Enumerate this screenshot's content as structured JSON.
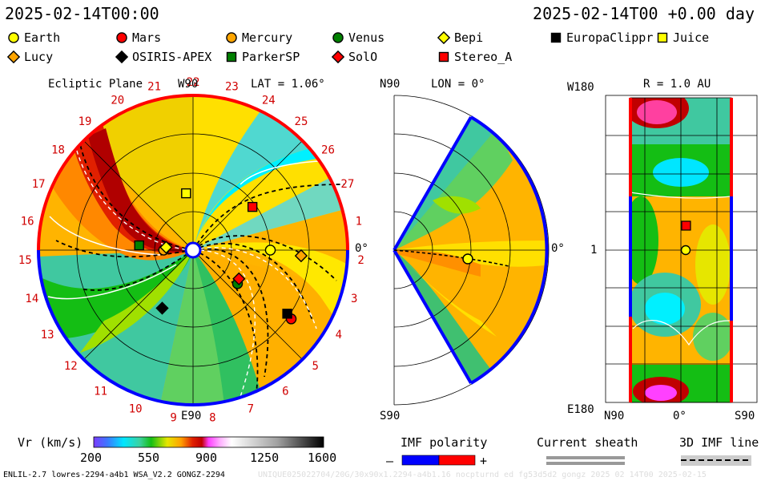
{
  "header": {
    "datetime": "2025-02-14T00:00",
    "offset_label": "2025-02-14T00 +0.00 day"
  },
  "legend": [
    {
      "name": "Earth",
      "shape": "circle",
      "color": "#ffff00"
    },
    {
      "name": "Mars",
      "shape": "circle",
      "color": "#ff0000"
    },
    {
      "name": "Mercury",
      "shape": "circle",
      "color": "#ffa500"
    },
    {
      "name": "Venus",
      "shape": "circle",
      "color": "#008000"
    },
    {
      "name": "Bepi",
      "shape": "diamond",
      "color": "#ffff00"
    },
    {
      "name": "EuropaClippr",
      "shape": "square",
      "color": "#000000"
    },
    {
      "name": "Juice",
      "shape": "square",
      "color": "#ffff00"
    },
    {
      "name": "Lucy",
      "shape": "diamond",
      "color": "#ffa500"
    },
    {
      "name": "OSIRIS-APEX",
      "shape": "diamond",
      "color": "#000000"
    },
    {
      "name": "ParkerSP",
      "shape": "square",
      "color": "#008000"
    },
    {
      "name": "SolO",
      "shape": "diamond",
      "color": "#ff0000"
    },
    {
      "name": "Stereo_A",
      "shape": "square",
      "color": "#ff0000"
    }
  ],
  "panels": {
    "ecliptic": {
      "title": "Ecliptic Plane",
      "top_label": "W90",
      "bottom_label": "E90",
      "lat_label": "LAT = 1.06°",
      "right_label": "0°"
    },
    "meridional": {
      "top_label": "N90",
      "bottom_label": "S90",
      "lon_label": "LON = 0°",
      "right_label": "0°"
    },
    "sphere": {
      "top_label": "W180",
      "bottom_label": "E180",
      "r_label": "R = 1.0 AU",
      "left_mid": "1",
      "bottom_left": "N90",
      "bottom_mid": "0°",
      "bottom_right": "S90"
    }
  },
  "carrington_numbers": [
    "19",
    "20",
    "21",
    "22",
    "23",
    "24",
    "25",
    "26",
    "27",
    "1",
    "2",
    "3",
    "4",
    "5",
    "6",
    "7",
    "8",
    "9",
    "10",
    "11",
    "12",
    "13",
    "14",
    "15",
    "16",
    "17",
    "18"
  ],
  "colorbar": {
    "label": "Vr (km/s)",
    "ticks": [
      "200",
      "550",
      "900",
      "1250",
      "1600"
    ],
    "min": 200,
    "max": 1600
  },
  "imf_polarity": {
    "label": "IMF polarity",
    "minus": "–",
    "plus": "+",
    "neg_color": "#0000ff",
    "pos_color": "#ff0000"
  },
  "current_sheath": {
    "label": "Current sheath"
  },
  "imf_line": {
    "label": "3D IMF line"
  },
  "footer": {
    "left": "ENLIL-2.7 lowres-2294-a4b1 WSA_V2.2 GONGZ-2294",
    "right": "UNIQUE025022704/20G/30x90x1.2294-a4b1.16 nocpturnd ed fg53d5d2 gongz 2025 02 14T00   2025-02-15"
  },
  "chart_data": {
    "type": "heatmap",
    "title": "Ecliptic Plane",
    "variable": "Vr (km/s)",
    "color_range": [
      200,
      1600
    ],
    "bodies_ecliptic": [
      {
        "name": "Earth",
        "r_au": 1.0,
        "lon_deg": 0
      },
      {
        "name": "Mars",
        "r_au": 1.55,
        "lon_deg": -35
      },
      {
        "name": "Mercury",
        "r_au": 0.38,
        "lon_deg": 180
      },
      {
        "name": "Venus",
        "r_au": 0.72,
        "lon_deg": -37
      },
      {
        "name": "Bepi",
        "r_au": 0.35,
        "lon_deg": 174
      },
      {
        "name": "EuropaClippr",
        "r_au": 1.47,
        "lon_deg": -34
      },
      {
        "name": "Juice",
        "r_au": 0.74,
        "lon_deg": 97
      },
      {
        "name": "Lucy",
        "r_au": 1.4,
        "lon_deg": -3
      },
      {
        "name": "OSIRIS-APEX",
        "r_au": 0.85,
        "lon_deg": -118
      },
      {
        "name": "ParkerSP",
        "r_au": 0.7,
        "lon_deg": 175
      },
      {
        "name": "SolO",
        "r_au": 0.7,
        "lon_deg": -32
      },
      {
        "name": "Stereo_A",
        "r_au": 0.95,
        "lon_deg": 36
      }
    ]
  }
}
